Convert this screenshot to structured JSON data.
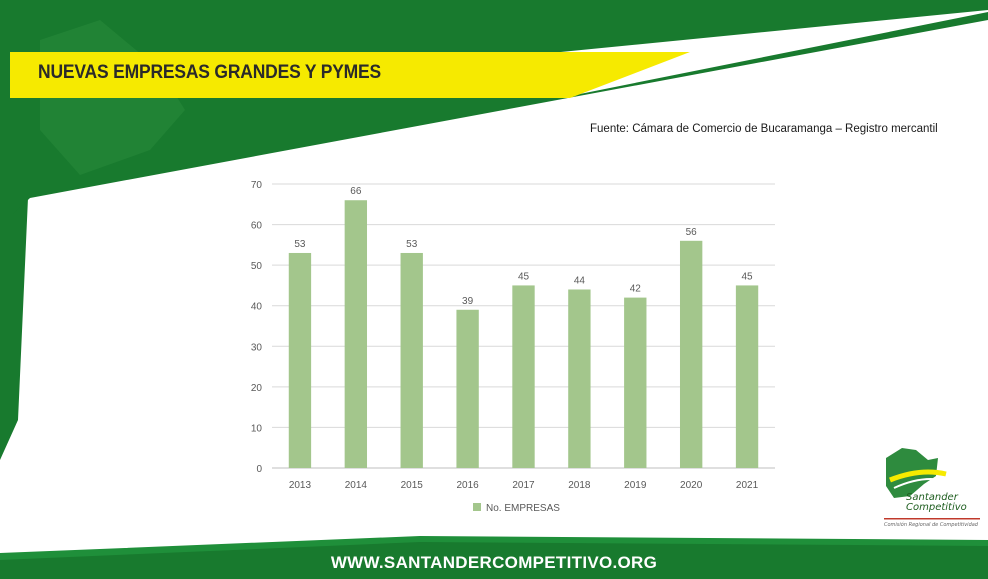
{
  "slide": {
    "title": "NUEVAS EMPRESAS GRANDES Y PYMES",
    "source": "Fuente: Cámara de Comercio de Bucaramanga – Registro mercantil",
    "footer_url": "WWW.SANTANDERCOMPETITIVO.ORG"
  },
  "logo": {
    "line1": "Santander",
    "line2": "Competitivo",
    "tagline": "Comisión Regional de Competitividad"
  },
  "colors": {
    "dark_green": "#187a2e",
    "yellow": "#f6ea00",
    "bar_green": "#a3c68c",
    "grid": "#d9d9d9",
    "axis_text": "#595959"
  },
  "chart_data": {
    "type": "bar",
    "categories": [
      "2013",
      "2014",
      "2015",
      "2016",
      "2017",
      "2018",
      "2019",
      "2020",
      "2021"
    ],
    "series": [
      {
        "name": "No. EMPRESAS",
        "values": [
          53,
          66,
          53,
          39,
          45,
          44,
          42,
          56,
          45
        ]
      }
    ],
    "ylim": [
      0,
      70
    ],
    "yticks": [
      0,
      10,
      20,
      30,
      40,
      50,
      60,
      70
    ],
    "grid": true,
    "data_labels": true,
    "legend": "bottom"
  }
}
